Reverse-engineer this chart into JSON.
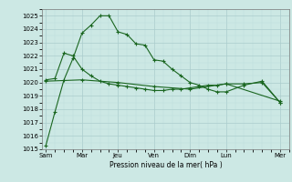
{
  "background_color": "#cce8e4",
  "grid_color_major": "#aacccc",
  "grid_color_minor": "#bbdddd",
  "line_color": "#1a6620",
  "xlabel": "Pression niveau de la mer( hPa )",
  "ylim": [
    1015,
    1025.5
  ],
  "yticks": [
    1015,
    1016,
    1017,
    1018,
    1019,
    1020,
    1021,
    1022,
    1023,
    1024,
    1025
  ],
  "xtick_labels": [
    "Sam",
    "Mar",
    "Jeu",
    "Ven",
    "Dim",
    "Lun",
    "Mer"
  ],
  "xtick_positions": [
    0,
    2,
    4,
    6,
    8,
    10,
    13
  ],
  "line1_x": [
    0,
    0.5,
    1.0,
    1.5,
    2.0,
    2.5,
    3.0,
    3.5,
    4.0,
    4.5,
    5.0,
    5.5,
    6.0,
    6.5,
    7.0,
    7.5,
    8.0,
    8.5,
    9.0,
    9.5,
    10.0,
    11.0,
    12.0,
    13.0
  ],
  "line1_y": [
    1015.3,
    1017.8,
    1020.2,
    1021.8,
    1023.7,
    1024.3,
    1025.0,
    1025.0,
    1023.8,
    1023.6,
    1022.9,
    1022.8,
    1021.7,
    1021.6,
    1021.0,
    1020.5,
    1020.0,
    1019.8,
    1019.5,
    1019.3,
    1019.3,
    1019.8,
    1020.1,
    1018.5
  ],
  "line2_x": [
    0,
    0.5,
    1.0,
    1.5,
    2.0,
    2.5,
    3.0,
    3.5,
    4.0,
    4.5,
    5.0,
    5.5,
    6.0,
    6.5,
    7.0,
    7.5,
    8.0,
    8.5,
    9.0,
    9.5,
    10.0,
    11.0,
    12.0,
    13.0
  ],
  "line2_y": [
    1020.2,
    1020.3,
    1022.2,
    1022.0,
    1021.0,
    1020.5,
    1020.1,
    1019.9,
    1019.8,
    1019.7,
    1019.6,
    1019.5,
    1019.4,
    1019.4,
    1019.5,
    1019.5,
    1019.6,
    1019.7,
    1019.8,
    1019.8,
    1019.9,
    1019.9,
    1020.0,
    1018.5
  ],
  "line3_x": [
    0,
    2.0,
    4.0,
    6.0,
    8.0,
    10.0,
    13.0
  ],
  "line3_y": [
    1020.1,
    1020.2,
    1020.0,
    1019.7,
    1019.5,
    1019.9,
    1018.6
  ]
}
